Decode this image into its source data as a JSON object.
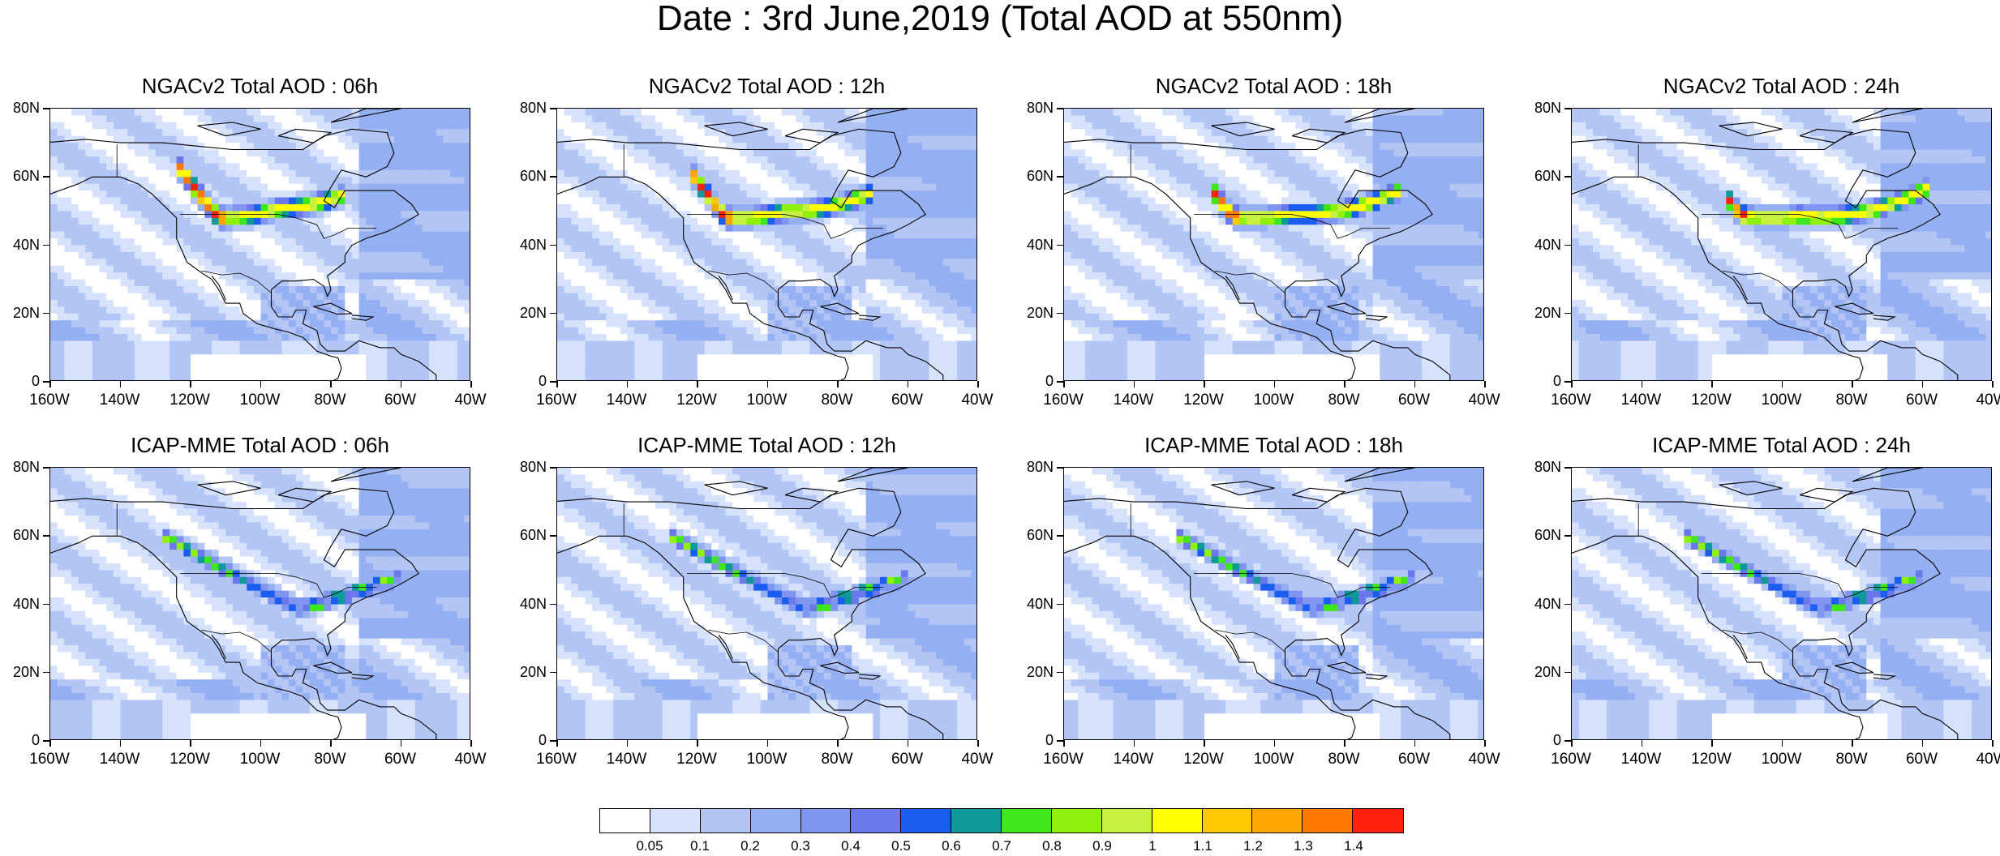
{
  "title": "Date : 3rd June,2019 (Total AOD at 550nm)",
  "panels": [
    {
      "title": "NGACv2 Total AOD : 06h",
      "model": "NGACv2",
      "hour": "06h"
    },
    {
      "title": "NGACv2 Total AOD : 12h",
      "model": "NGACv2",
      "hour": "12h"
    },
    {
      "title": "NGACv2 Total AOD : 18h",
      "model": "NGACv2",
      "hour": "18h"
    },
    {
      "title": "NGACv2 Total AOD : 24h",
      "model": "NGACv2",
      "hour": "24h"
    },
    {
      "title": "ICAP-MME Total AOD : 06h",
      "model": "ICAP-MME",
      "hour": "06h"
    },
    {
      "title": "ICAP-MME Total AOD : 12h",
      "model": "ICAP-MME",
      "hour": "12h"
    },
    {
      "title": "ICAP-MME Total AOD : 18h",
      "model": "ICAP-MME",
      "hour": "18h"
    },
    {
      "title": "ICAP-MME Total AOD : 24h",
      "model": "ICAP-MME",
      "hour": "24h"
    }
  ],
  "axes": {
    "lat_labels": [
      "80N",
      "60N",
      "40N",
      "20N",
      "0"
    ],
    "lon_labels": [
      "160W",
      "140W",
      "120W",
      "100W",
      "80W",
      "60W",
      "40W"
    ],
    "lat_range": [
      0,
      80
    ],
    "lon_range": [
      -160,
      -40
    ]
  },
  "colorbar": {
    "labels": [
      "0.05",
      "0.1",
      "0.2",
      "0.3",
      "0.4",
      "0.5",
      "0.6",
      "0.7",
      "0.8",
      "0.9",
      "1",
      "1.1",
      "1.2",
      "1.3",
      "1.4"
    ],
    "colors": [
      "#ffffff",
      "#d6e1fb",
      "#b2c5f5",
      "#95b0f2",
      "#7f95ef",
      "#6a78ec",
      "#1a5df0",
      "#0f9a99",
      "#3fe61c",
      "#8ff00b",
      "#c8f040",
      "#ffff00",
      "#ffc800",
      "#ffa600",
      "#ff7a00",
      "#ff2010"
    ]
  }
}
